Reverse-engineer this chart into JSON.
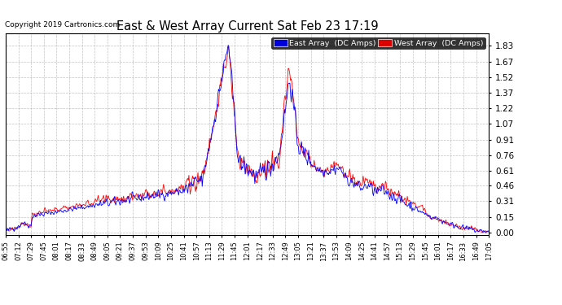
{
  "title": "East & West Array Current Sat Feb 23 17:19",
  "copyright": "Copyright 2019 Cartronics.com",
  "legend_east": "East Array  (DC Amps)",
  "legend_west": "West Array  (DC Amps)",
  "east_color": "#0000ff",
  "west_color": "#ff0000",
  "legend_east_bg": "#0000dd",
  "legend_west_bg": "#dd0000",
  "yticks": [
    0.0,
    0.15,
    0.31,
    0.46,
    0.61,
    0.76,
    0.91,
    1.07,
    1.22,
    1.37,
    1.52,
    1.67,
    1.83
  ],
  "ylim": [
    -0.02,
    1.95
  ],
  "background_color": "#ffffff",
  "plot_bg": "#ffffff",
  "grid_color": "#999999",
  "x_tick_labels": [
    "06:55",
    "07:12",
    "07:29",
    "07:45",
    "08:01",
    "08:17",
    "08:33",
    "08:49",
    "09:05",
    "09:21",
    "09:37",
    "09:53",
    "10:09",
    "10:25",
    "10:41",
    "10:57",
    "11:13",
    "11:29",
    "11:45",
    "12:01",
    "12:17",
    "12:33",
    "12:49",
    "13:05",
    "13:21",
    "13:37",
    "13:53",
    "14:09",
    "14:25",
    "14:41",
    "14:57",
    "15:13",
    "15:29",
    "15:45",
    "16:01",
    "16:17",
    "16:33",
    "16:49",
    "17:05"
  ]
}
